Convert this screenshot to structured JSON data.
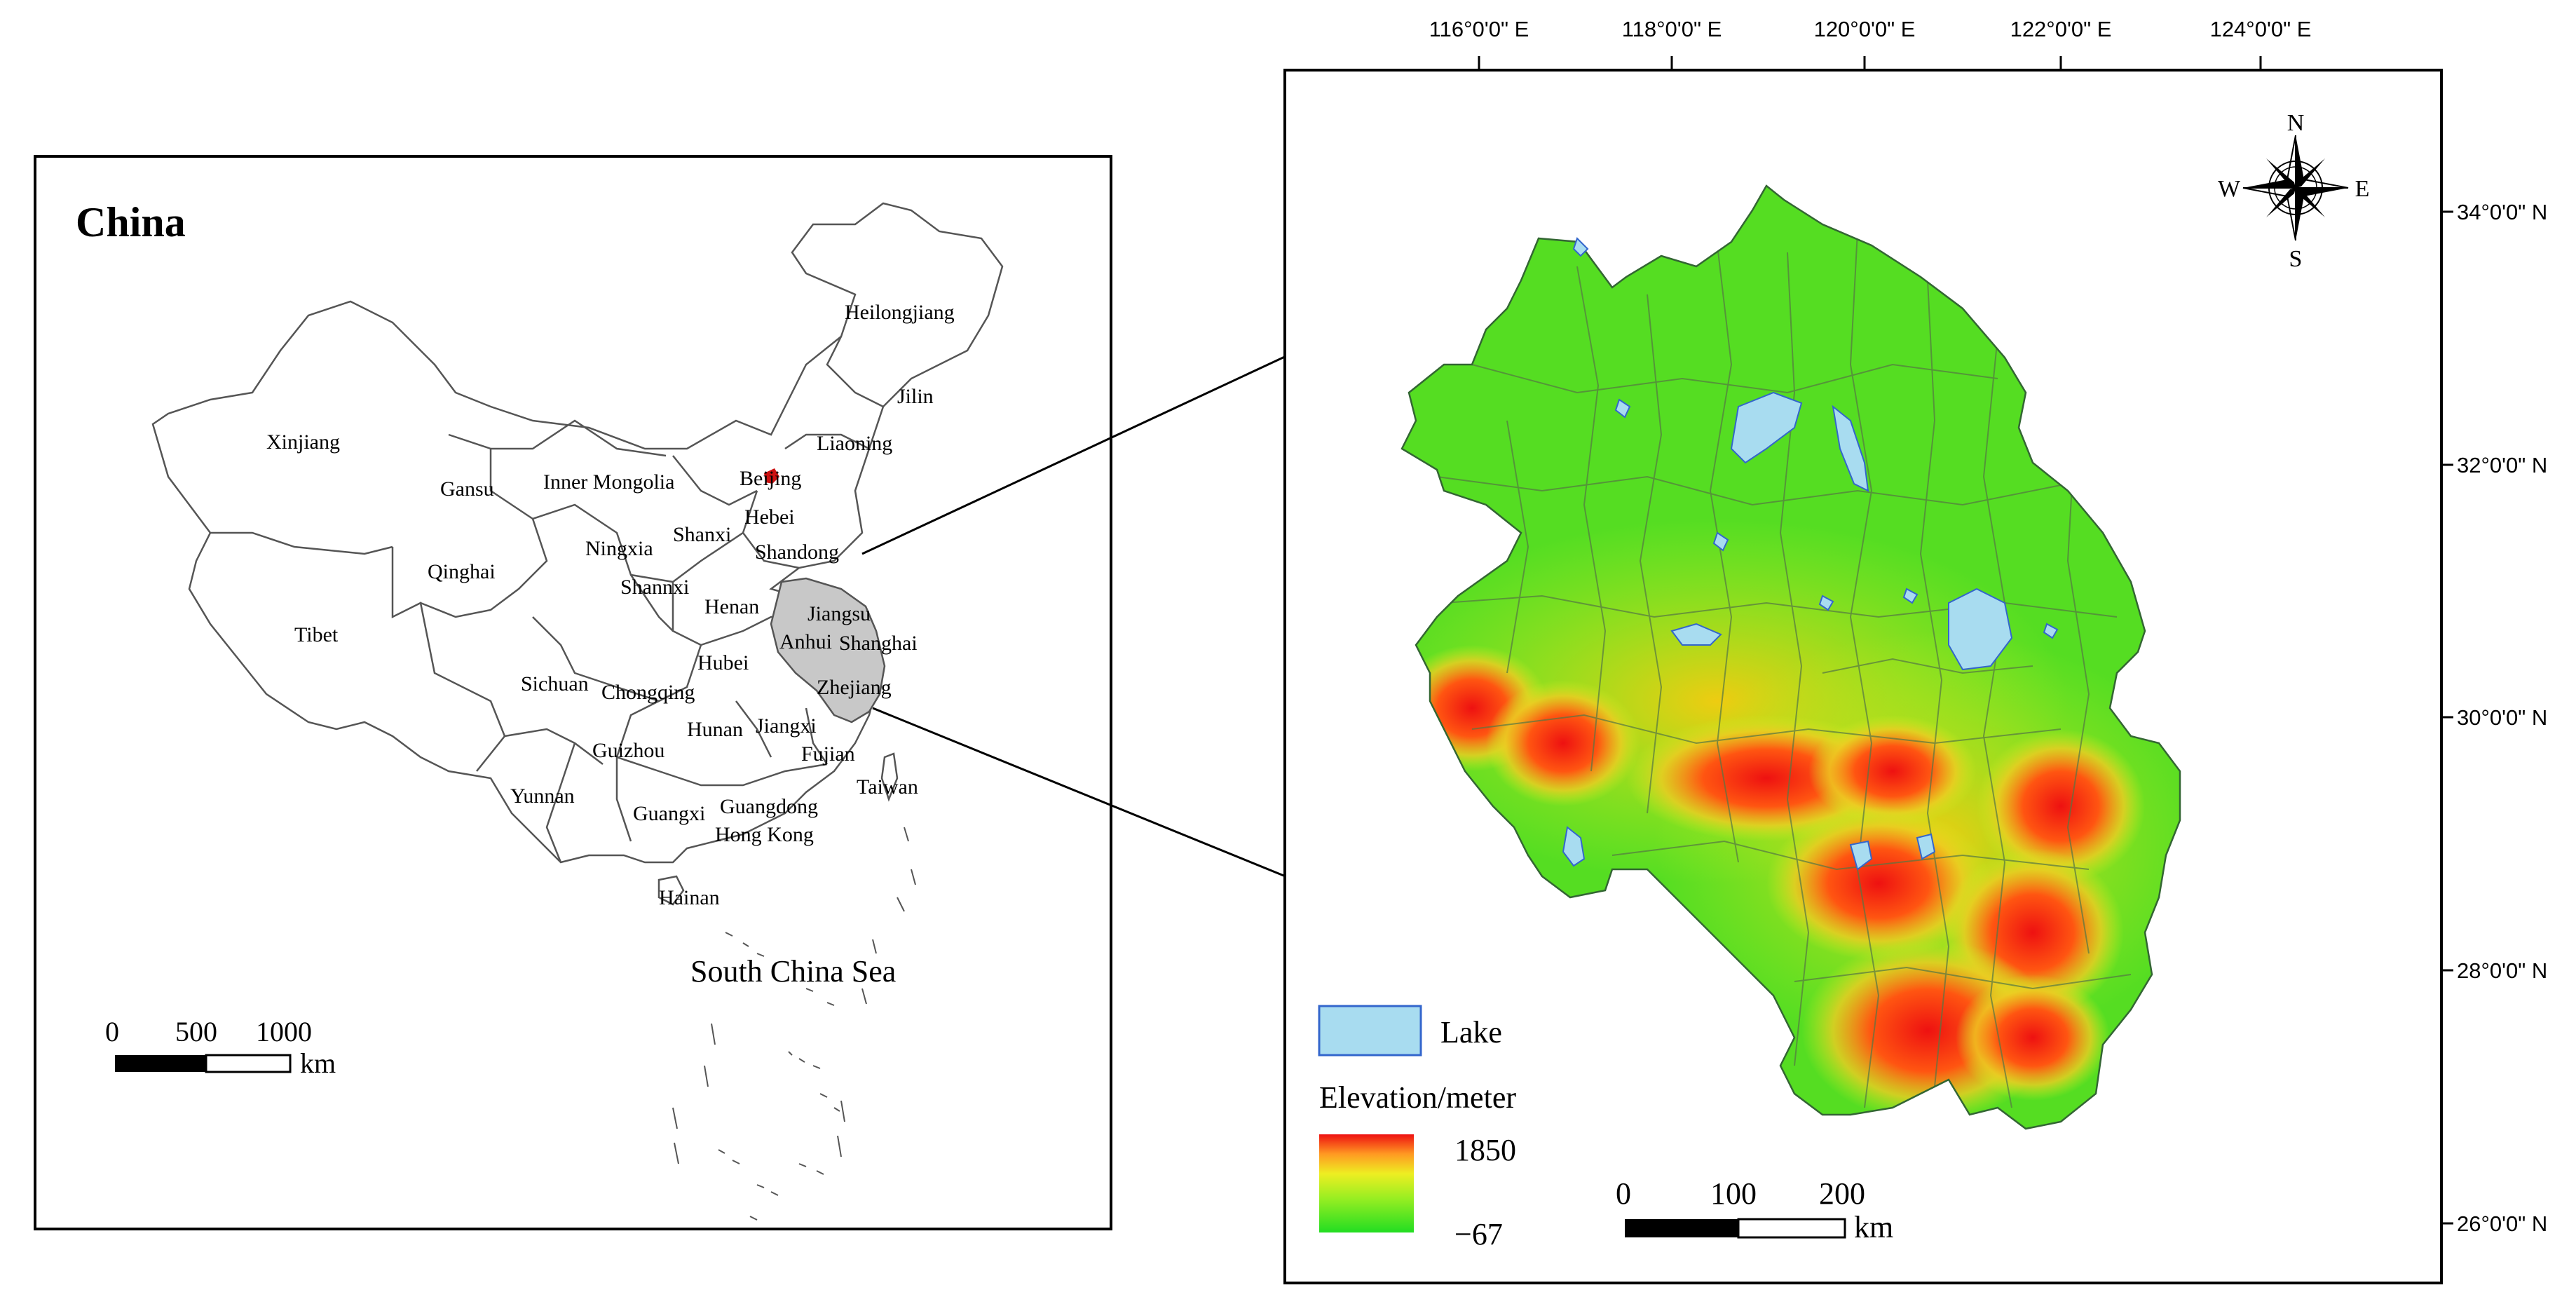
{
  "left_map": {
    "title": "China",
    "sea_label": "South China Sea",
    "provinces": [
      {
        "name": "Heilongjiang"
      },
      {
        "name": "Jilin"
      },
      {
        "name": "Liaoning"
      },
      {
        "name": "Xinjiang"
      },
      {
        "name": "Gansu"
      },
      {
        "name": "Inner Mongolia"
      },
      {
        "name": "Beijing"
      },
      {
        "name": "Hebei"
      },
      {
        "name": "Shanxi"
      },
      {
        "name": "Ningxia"
      },
      {
        "name": "Shandong"
      },
      {
        "name": "Qinghai"
      },
      {
        "name": "Shannxi"
      },
      {
        "name": "Henan"
      },
      {
        "name": "Jiangsu"
      },
      {
        "name": "Anhui"
      },
      {
        "name": "Shanghai"
      },
      {
        "name": "Tibet"
      },
      {
        "name": "Hubei"
      },
      {
        "name": "Sichuan"
      },
      {
        "name": "Chongqing"
      },
      {
        "name": "Zhejiang"
      },
      {
        "name": "Hunan"
      },
      {
        "name": "Jiangxi"
      },
      {
        "name": "Guizhou"
      },
      {
        "name": "Fujian"
      },
      {
        "name": "Yunnan"
      },
      {
        "name": "Guangxi"
      },
      {
        "name": "Guangdong"
      },
      {
        "name": "Taiwan"
      },
      {
        "name": "Hong Kong"
      },
      {
        "name": "Hainan"
      }
    ],
    "scale_bar": {
      "ticks": [
        "0",
        "500",
        "1000"
      ],
      "unit": "km"
    }
  },
  "right_map": {
    "longitude_labels": [
      "116°0'0\" E",
      "118°0'0\" E",
      "120°0'0\" E",
      "122°0'0\" E",
      "124°0'0\" E"
    ],
    "latitude_labels": [
      "34°0'0\" N",
      "32°0'0\" N",
      "30°0'0\" N",
      "28°0'0\" N",
      "26°0'0\" N"
    ],
    "compass": {
      "n": "N",
      "s": "S",
      "e": "E",
      "w": "W"
    },
    "legend": {
      "lake_label": "Lake",
      "elevation_title": "Elevation/meter",
      "elevation_max": "1850",
      "elevation_min": "−67"
    },
    "scale_bar": {
      "ticks": [
        "0",
        "100",
        "200"
      ],
      "unit": "km"
    },
    "colors": {
      "lake": "#a8dcf0",
      "low": "#44dd22",
      "mid": "#ccee22",
      "high": "#ee1111"
    }
  }
}
